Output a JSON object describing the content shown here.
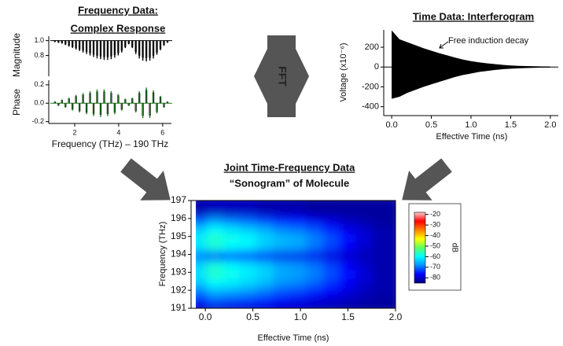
{
  "fft_label": "FFT",
  "chart_data": [
    {
      "type": "stem",
      "title": "Frequency Data:",
      "subtitle": "Complex Response",
      "ylabel": "Magnitude",
      "color": "#000000",
      "x": [
        1.1,
        1.26,
        1.42,
        1.58,
        1.74,
        1.9,
        2.06,
        2.22,
        2.38,
        2.54,
        2.7,
        2.86,
        3.02,
        3.18,
        3.34,
        3.5,
        3.66,
        3.82,
        3.98,
        4.14,
        4.3,
        4.46,
        4.62,
        4.78,
        4.94,
        5.1,
        5.26,
        5.42,
        5.58,
        5.74,
        5.9,
        6.06,
        6.22
      ],
      "values": [
        0.98,
        0.97,
        0.96,
        0.94,
        0.92,
        0.9,
        0.88,
        0.86,
        0.84,
        0.82,
        0.8,
        0.78,
        0.76,
        0.75,
        0.74,
        0.74,
        0.75,
        0.77,
        0.8,
        0.84,
        0.9,
        0.95,
        0.9,
        0.82,
        0.76,
        0.73,
        0.72,
        0.73,
        0.76,
        0.81,
        0.87,
        0.93,
        0.97
      ],
      "xlim": [
        0.82,
        6.4
      ],
      "xticks": [
        2,
        4,
        6
      ],
      "ylim": [
        0.52,
        1.06
      ],
      "yticks": [
        0.8,
        {
          "value": 1,
          "label": "1.0"
        }
      ]
    },
    {
      "type": "stem",
      "ylabel": "Phase",
      "xlabel": "Frequency (THz) – 190 THz",
      "color": "#1f7a1f",
      "x": [
        1.1,
        1.26,
        1.42,
        1.58,
        1.74,
        1.9,
        2.06,
        2.22,
        2.38,
        2.54,
        2.7,
        2.86,
        3.02,
        3.18,
        3.34,
        3.5,
        3.66,
        3.82,
        3.98,
        4.14,
        4.3,
        4.46,
        4.62,
        4.78,
        4.94,
        5.1,
        5.26,
        5.42,
        5.58,
        5.74,
        5.9,
        6.06,
        6.22
      ],
      "values": [
        0.02,
        -0.03,
        0.04,
        -0.05,
        0.06,
        -0.08,
        0.09,
        -0.1,
        0.11,
        -0.12,
        0.13,
        -0.14,
        0.15,
        -0.15,
        0.15,
        -0.14,
        0.13,
        -0.12,
        0.1,
        -0.08,
        0.05,
        -0.03,
        0.06,
        -0.1,
        0.13,
        -0.16,
        0.17,
        -0.16,
        0.14,
        -0.11,
        0.08,
        -0.05,
        0.02
      ],
      "xlim": [
        0.82,
        6.4
      ],
      "xticks": [
        2,
        4,
        6
      ],
      "ylim": [
        -0.22,
        0.25
      ],
      "yticks": [
        -0.2,
        {
          "value": 0,
          "label": "0.0"
        },
        0.2
      ]
    },
    {
      "type": "area",
      "title": "Time Data: Interferogram",
      "ylabel": "Voltage (x10⁻⁶)",
      "xlabel": "Effective Time (ns)",
      "annotation": "Free induction decay",
      "color": "#000000",
      "x": [
        0,
        0.1,
        0.2,
        0.3,
        0.4,
        0.5,
        0.6,
        0.7,
        0.8,
        0.9,
        1.0,
        1.1,
        1.2,
        1.3,
        1.4,
        1.5,
        1.6,
        1.7,
        1.8,
        1.9,
        2.0
      ],
      "values": [
        370,
        280,
        250,
        220,
        190,
        165,
        140,
        118,
        95,
        75,
        60,
        48,
        38,
        30,
        22,
        16,
        12,
        10,
        8,
        6,
        5
      ],
      "values_low": [
        -320,
        -300,
        -260,
        -230,
        -200,
        -175,
        -150,
        -125,
        -100,
        -80,
        -65,
        -50,
        -40,
        -30,
        -22,
        -17,
        -13,
        -10,
        -8,
        -6,
        -5
      ],
      "xlim": [
        -0.1,
        2.1
      ],
      "xticks": [
        {
          "value": 0,
          "label": "0.0"
        },
        0.5,
        {
          "value": 1,
          "label": "1.0"
        },
        1.5,
        {
          "value": 2,
          "label": "2.0"
        }
      ],
      "ylim": [
        -490,
        375
      ],
      "yticks": [
        -400,
        -200,
        0,
        200
      ]
    },
    {
      "type": "heatmap",
      "title": "Joint Time-Frequency Data",
      "subtitle": "“Sonogram” of Molecule",
      "xlabel": "Effective Time (ns)",
      "ylabel": "Frequency (THz)",
      "xbins": [
        -0.1,
        0.075,
        0.25,
        0.425,
        0.6,
        0.775,
        0.95,
        1.125,
        1.3,
        1.475,
        1.65,
        1.825,
        2.0
      ],
      "ybins": [
        191,
        191.5,
        192,
        192.5,
        193,
        193.5,
        194,
        194.5,
        195,
        195.5,
        196,
        196.5,
        197
      ],
      "z": [
        [
          -82,
          -80,
          -80,
          -80,
          -80,
          -81,
          -81,
          -82,
          -82,
          -83,
          -83,
          -83
        ],
        [
          -76,
          -72,
          -73,
          -74,
          -75,
          -77,
          -78,
          -79,
          -80,
          -81,
          -82,
          -83
        ],
        [
          -70,
          -66,
          -67,
          -68,
          -70,
          -72,
          -73,
          -75,
          -77,
          -79,
          -81,
          -82
        ],
        [
          -64,
          -60,
          -61,
          -63,
          -65,
          -68,
          -69,
          -71,
          -74,
          -77,
          -80,
          -82
        ],
        [
          -62,
          -57,
          -59,
          -61,
          -63,
          -66,
          -67,
          -69,
          -72,
          -76,
          -79,
          -82
        ],
        [
          -63,
          -58,
          -60,
          -62,
          -64,
          -67,
          -68,
          -70,
          -73,
          -77,
          -80,
          -82
        ],
        [
          -70,
          -74,
          -75,
          -76,
          -77,
          -78,
          -78,
          -78,
          -79,
          -80,
          -81,
          -82
        ],
        [
          -62,
          -58,
          -60,
          -61,
          -64,
          -66,
          -67,
          -70,
          -73,
          -77,
          -80,
          -82
        ],
        [
          -61,
          -57,
          -59,
          -60,
          -63,
          -65,
          -66,
          -69,
          -72,
          -76,
          -79,
          -82
        ],
        [
          -64,
          -60,
          -62,
          -64,
          -66,
          -69,
          -70,
          -72,
          -75,
          -78,
          -80,
          -82
        ],
        [
          -72,
          -68,
          -70,
          -71,
          -73,
          -75,
          -76,
          -78,
          -79,
          -81,
          -82,
          -83
        ],
        [
          -82,
          -81,
          -81,
          -81,
          -82,
          -82,
          -82,
          -83,
          -83,
          -83,
          -83,
          -83
        ]
      ],
      "xlim": [
        -0.15,
        2.0
      ],
      "xticks": [
        {
          "value": 0,
          "label": "0.0"
        },
        0.5,
        {
          "value": 1,
          "label": "1.0"
        },
        1.5,
        {
          "value": 2,
          "label": "2.0"
        }
      ],
      "ylim": [
        191,
        197
      ],
      "yticks": [
        191,
        192,
        193,
        194,
        195,
        196,
        197
      ],
      "colorbar": {
        "label": "dB",
        "zlim": [
          -85,
          -18
        ],
        "zticks": [
          -80,
          -70,
          -60,
          -50,
          -40,
          -30,
          -20
        ],
        "colormap": [
          "#000080",
          "#0000ff",
          "#0090ff",
          "#00ffff",
          "#60ff60",
          "#ffff00",
          "#ff8000",
          "#ff0000",
          "#ffd0d0"
        ]
      }
    }
  ]
}
